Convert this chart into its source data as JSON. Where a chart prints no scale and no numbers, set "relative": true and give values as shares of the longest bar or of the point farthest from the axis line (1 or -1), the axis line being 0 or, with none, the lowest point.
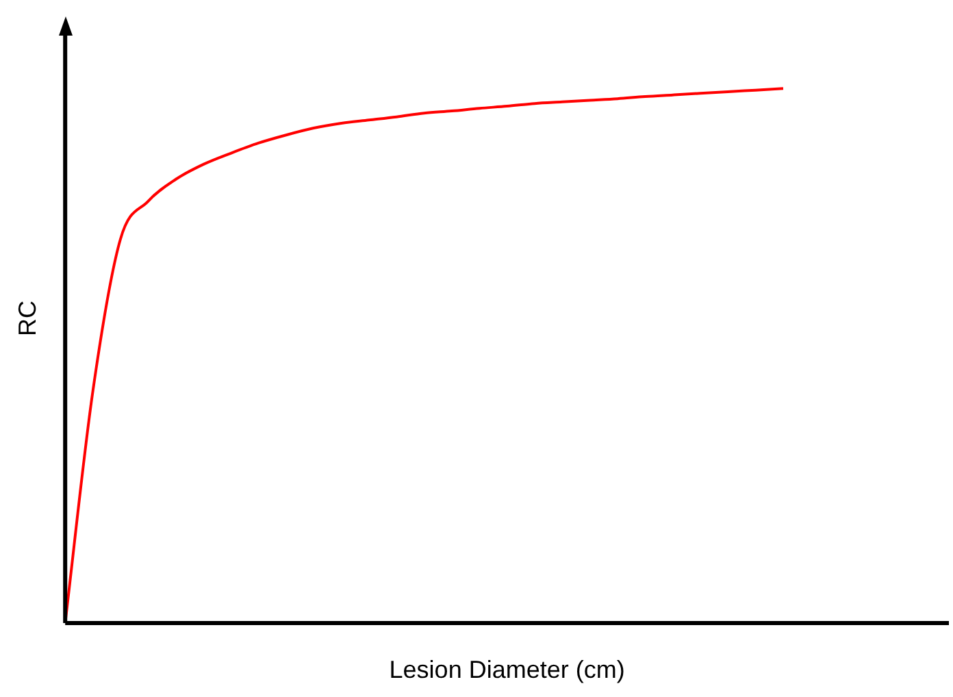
{
  "chart_data": {
    "type": "line",
    "relative": true,
    "xlabel": "Lesion Diameter (cm)",
    "ylabel": "RC",
    "grid": false,
    "legend": false,
    "marker": "none",
    "line_style": "solid",
    "categories": [
      null,
      null,
      null,
      null,
      null,
      null,
      null,
      null,
      null,
      null,
      null,
      null,
      null,
      null,
      null,
      null,
      null,
      null,
      null,
      null,
      null,
      null,
      null,
      null,
      null,
      null,
      null,
      null,
      null,
      null,
      null,
      null,
      null
    ],
    "series": [
      {
        "color": "#ff0000",
        "values": [
          0,
          0.433,
          0.718,
          0.789,
          0.83,
          0.858,
          0.879,
          0.898,
          0.913,
          0.926,
          0.935,
          0.941,
          0.947,
          0.954,
          0.958,
          0.963,
          0.967,
          0.972,
          0.975,
          0.978,
          0.981,
          0.985,
          0.988,
          0.991,
          0.994,
          0.997,
          1,
          null,
          null,
          null,
          null,
          null,
          null
        ]
      }
    ]
  }
}
